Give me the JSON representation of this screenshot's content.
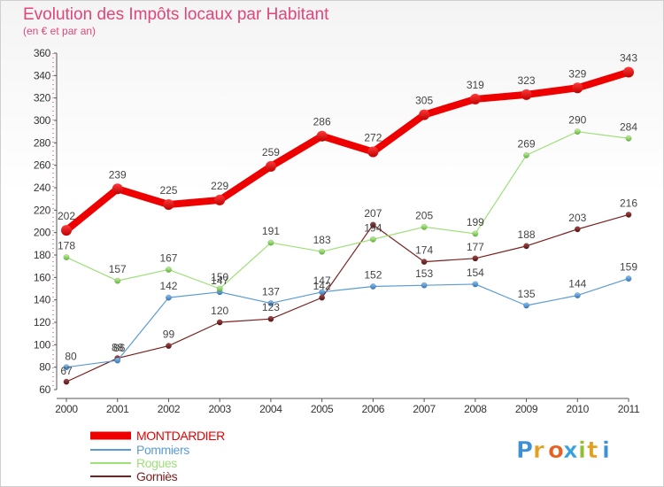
{
  "chart_data": {
    "type": "line",
    "title": "Evolution des Impôts locaux par Habitant",
    "subtitle": "(en € et par an)",
    "xlabel": "",
    "ylabel": "",
    "categories": [
      "2000",
      "2001",
      "2002",
      "2003",
      "2004",
      "2005",
      "2006",
      "2007",
      "2008",
      "2009",
      "2010",
      "2011"
    ],
    "ylim": [
      60,
      360
    ],
    "yticks": [
      60,
      80,
      100,
      120,
      140,
      160,
      180,
      200,
      220,
      240,
      260,
      280,
      300,
      320,
      340,
      360
    ],
    "grid": false,
    "legend_position": "bottom-left",
    "series": [
      {
        "name": "MONTDARDIER",
        "color": "#ee0000",
        "values": [
          202,
          239,
          225,
          229,
          259,
          286,
          272,
          305,
          319,
          323,
          329,
          343
        ],
        "labels": [
          "202",
          "239",
          "225",
          "229",
          "259",
          "286",
          "272",
          "305",
          "319",
          "323",
          "329",
          "343"
        ]
      },
      {
        "name": "Pommiers",
        "color": "#5b9bd5",
        "values": [
          80,
          86,
          142,
          147,
          137,
          147,
          152,
          153,
          154,
          135,
          144,
          159
        ],
        "labels": [
          "80",
          "86",
          "142",
          "147",
          "137",
          "147",
          "152",
          "153",
          "154",
          "135",
          "144",
          "159"
        ]
      },
      {
        "name": "Rogues",
        "color": "#9ee079",
        "values": [
          178,
          157,
          167,
          150,
          191,
          183,
          194,
          205,
          199,
          269,
          290,
          284
        ],
        "labels": [
          "178",
          "157",
          "167",
          "150",
          "191",
          "183",
          "194",
          "205",
          "199",
          "269",
          "290",
          "284"
        ]
      },
      {
        "name": "Gorniès",
        "color": "#7a1f1f",
        "values": [
          67,
          88,
          99,
          120,
          123,
          142,
          207,
          174,
          177,
          188,
          203,
          216
        ],
        "labels": [
          "67",
          "88",
          "99",
          "120",
          "123",
          "142",
          "207",
          "174",
          "177",
          "188",
          "203",
          "216"
        ]
      }
    ]
  },
  "branding": {
    "logo_text": "Proxiti"
  }
}
